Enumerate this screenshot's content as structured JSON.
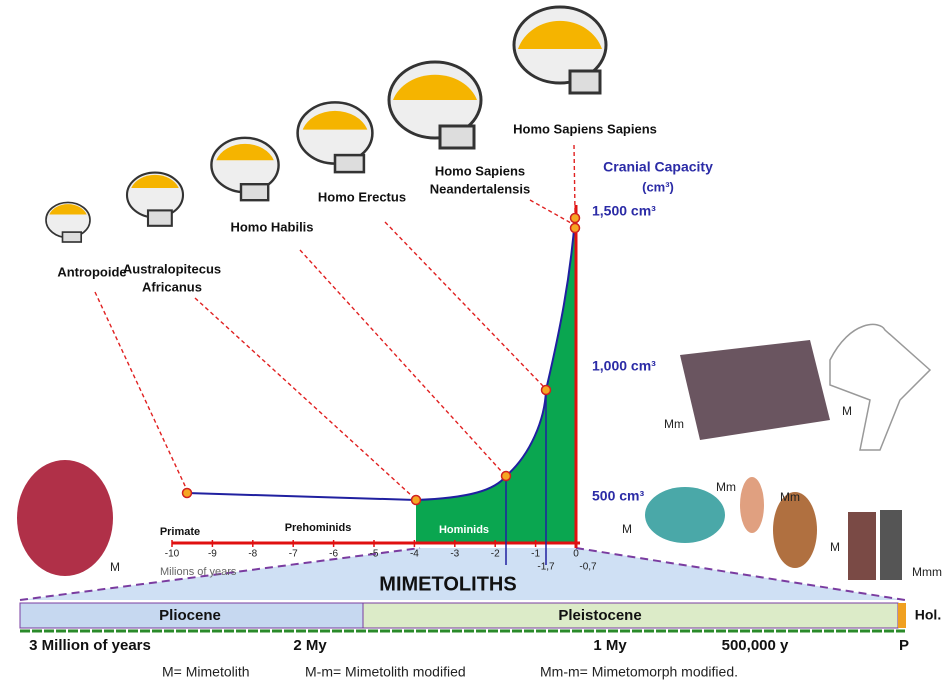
{
  "species": [
    {
      "lines": [
        "Antropoide"
      ]
    },
    {
      "lines": [
        "Australopitecus",
        "Africanus"
      ]
    },
    {
      "lines": [
        "Homo Habilis"
      ]
    },
    {
      "lines": [
        "Homo Erectus"
      ]
    },
    {
      "lines": [
        "Homo Sapiens",
        "Neandertalensis"
      ]
    },
    {
      "lines": [
        "Homo Sapiens Sapiens"
      ]
    }
  ],
  "capacity_axis": {
    "title": "Cranial Capacity",
    "unit": "(cm³)",
    "labels": [
      "1,500 cm³",
      "1,000 cm³",
      "500 cm³"
    ]
  },
  "stages": [
    "Primate",
    "Prehominids",
    "Hominids"
  ],
  "x_ticks": [
    "-10",
    "-9",
    "-8",
    "-7",
    "-6",
    "-5",
    "-4",
    "-3",
    "-2",
    "-1",
    "0"
  ],
  "x_extra_ticks": [
    "-1,7",
    "-0,7"
  ],
  "x_axis_label": "Milions of years",
  "band_title": "MIMETOLITHS",
  "epochs": [
    "Pliocene",
    "Pleistocene",
    "Hol."
  ],
  "timeline": [
    "3 Million of years",
    "2 My",
    "1 My",
    "500,000 y",
    "P"
  ],
  "photo_labels": [
    "M",
    "Mm",
    "M",
    "Mm",
    "Mm",
    "M",
    "Mmm",
    "M"
  ],
  "legend": [
    "M= Mimetolith",
    "M-m= Mimetolith modified",
    "Mm-m= Mimetomorph modified."
  ]
}
